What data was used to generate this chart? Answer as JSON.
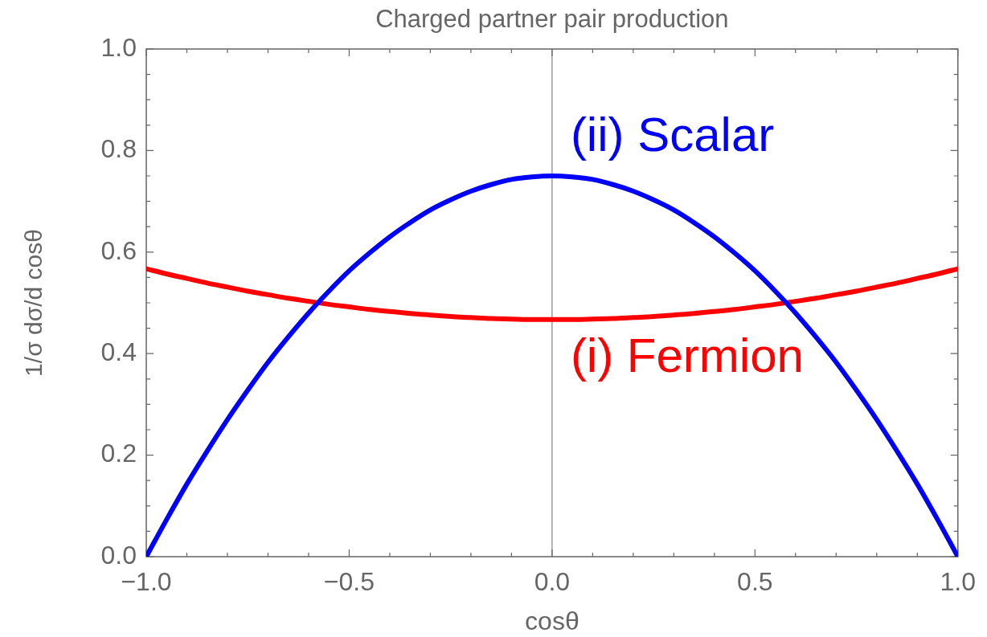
{
  "chart_data": {
    "type": "line",
    "title": "Charged partner pair production",
    "xlabel": "cosθ",
    "ylabel": "1/σ dσ/d cosθ",
    "x": [
      -1,
      -0.95,
      -0.9,
      -0.85,
      -0.8,
      -0.75,
      -0.7,
      -0.65,
      -0.6,
      -0.55,
      -0.5,
      -0.45,
      -0.4,
      -0.35,
      -0.3,
      -0.25,
      -0.2,
      -0.15,
      -0.1,
      -0.05,
      0,
      0.05,
      0.1,
      0.15,
      0.2,
      0.25,
      0.3,
      0.35,
      0.4,
      0.45,
      0.5,
      0.55,
      0.6,
      0.65,
      0.7,
      0.75,
      0.8,
      0.85,
      0.9,
      0.95,
      1
    ],
    "series": [
      {
        "name": "(ii) Scalar",
        "color": "#0000ff",
        "values": [
          0,
          0.073,
          0.143,
          0.208,
          0.27,
          0.328,
          0.383,
          0.433,
          0.48,
          0.523,
          0.563,
          0.598,
          0.63,
          0.658,
          0.683,
          0.703,
          0.72,
          0.733,
          0.743,
          0.748,
          0.75,
          0.748,
          0.743,
          0.733,
          0.72,
          0.703,
          0.683,
          0.658,
          0.63,
          0.598,
          0.563,
          0.523,
          0.48,
          0.433,
          0.383,
          0.328,
          0.27,
          0.208,
          0.143,
          0.073,
          0
        ]
      },
      {
        "name": "(i) Fermion",
        "color": "#ff0000",
        "values": [
          0.567,
          0.557,
          0.548,
          0.539,
          0.531,
          0.523,
          0.516,
          0.509,
          0.503,
          0.497,
          0.492,
          0.487,
          0.483,
          0.479,
          0.476,
          0.473,
          0.471,
          0.469,
          0.468,
          0.467,
          0.467,
          0.467,
          0.468,
          0.469,
          0.471,
          0.473,
          0.476,
          0.479,
          0.483,
          0.487,
          0.492,
          0.497,
          0.503,
          0.509,
          0.516,
          0.523,
          0.531,
          0.539,
          0.548,
          0.557,
          0.567
        ]
      }
    ],
    "xlim": [
      -1,
      1
    ],
    "ylim": [
      0,
      1
    ],
    "xticks": [
      {
        "value": -1,
        "label": "−1.0"
      },
      {
        "value": -0.9,
        "label": null
      },
      {
        "value": -0.8,
        "label": null
      },
      {
        "value": -0.7,
        "label": null
      },
      {
        "value": -0.6,
        "label": null
      },
      {
        "value": -0.5,
        "label": "−0.5"
      },
      {
        "value": -0.4,
        "label": null
      },
      {
        "value": -0.3,
        "label": null
      },
      {
        "value": -0.2,
        "label": null
      },
      {
        "value": -0.1,
        "label": null
      },
      {
        "value": 0,
        "label": "0.0"
      },
      {
        "value": 0.1,
        "label": null
      },
      {
        "value": 0.2,
        "label": null
      },
      {
        "value": 0.3,
        "label": null
      },
      {
        "value": 0.4,
        "label": null
      },
      {
        "value": 0.5,
        "label": "0.5"
      },
      {
        "value": 0.6,
        "label": null
      },
      {
        "value": 0.7,
        "label": null
      },
      {
        "value": 0.8,
        "label": null
      },
      {
        "value": 0.9,
        "label": null
      },
      {
        "value": 1,
        "label": "1.0"
      }
    ],
    "yticks": [
      {
        "value": 0,
        "label": "0.0"
      },
      {
        "value": 0.05,
        "label": null
      },
      {
        "value": 0.1,
        "label": null
      },
      {
        "value": 0.15,
        "label": null
      },
      {
        "value": 0.2,
        "label": "0.2"
      },
      {
        "value": 0.25,
        "label": null
      },
      {
        "value": 0.3,
        "label": null
      },
      {
        "value": 0.35,
        "label": null
      },
      {
        "value": 0.4,
        "label": "0.4"
      },
      {
        "value": 0.45,
        "label": null
      },
      {
        "value": 0.5,
        "label": null
      },
      {
        "value": 0.55,
        "label": null
      },
      {
        "value": 0.6,
        "label": "0.6"
      },
      {
        "value": 0.65,
        "label": null
      },
      {
        "value": 0.7,
        "label": null
      },
      {
        "value": 0.75,
        "label": null
      },
      {
        "value": 0.8,
        "label": "0.8"
      },
      {
        "value": 0.85,
        "label": null
      },
      {
        "value": 0.9,
        "label": null
      },
      {
        "value": 0.95,
        "label": null
      },
      {
        "value": 1,
        "label": "1.0"
      }
    ],
    "ref_lines": [
      {
        "axis": "x",
        "value": 0,
        "color": "#808080"
      }
    ],
    "marker": "none",
    "line_style": "solid"
  }
}
